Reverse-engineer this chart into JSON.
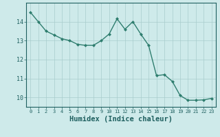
{
  "x": [
    0,
    1,
    2,
    3,
    4,
    5,
    6,
    7,
    8,
    9,
    10,
    11,
    12,
    13,
    14,
    15,
    16,
    17,
    18,
    19,
    20,
    21,
    22,
    23
  ],
  "y": [
    14.5,
    14.0,
    13.5,
    13.3,
    13.1,
    13.0,
    12.8,
    12.75,
    12.75,
    13.0,
    13.35,
    14.15,
    13.6,
    14.0,
    13.35,
    12.75,
    11.15,
    11.2,
    10.85,
    10.1,
    9.85,
    9.85,
    9.87,
    9.95
  ],
  "line_color": "#2e7d6e",
  "marker": "D",
  "marker_size": 2.0,
  "bg_color": "#ceeaea",
  "grid_color_major": "#a8cccc",
  "grid_color_minor": "#bedddd",
  "tick_color": "#1e5f5f",
  "xlabel": "Humidex (Indice chaleur)",
  "xlabel_fontsize": 7.5,
  "ylim": [
    9.5,
    15.0
  ],
  "xlim": [
    -0.5,
    23.5
  ],
  "yticks": [
    10,
    11,
    12,
    13,
    14
  ],
  "xticks": [
    0,
    1,
    2,
    3,
    4,
    5,
    6,
    7,
    8,
    9,
    10,
    11,
    12,
    13,
    14,
    15,
    16,
    17,
    18,
    19,
    20,
    21,
    22,
    23
  ],
  "xtick_fontsize": 5.0,
  "ytick_fontsize": 6.0,
  "linewidth": 1.0
}
